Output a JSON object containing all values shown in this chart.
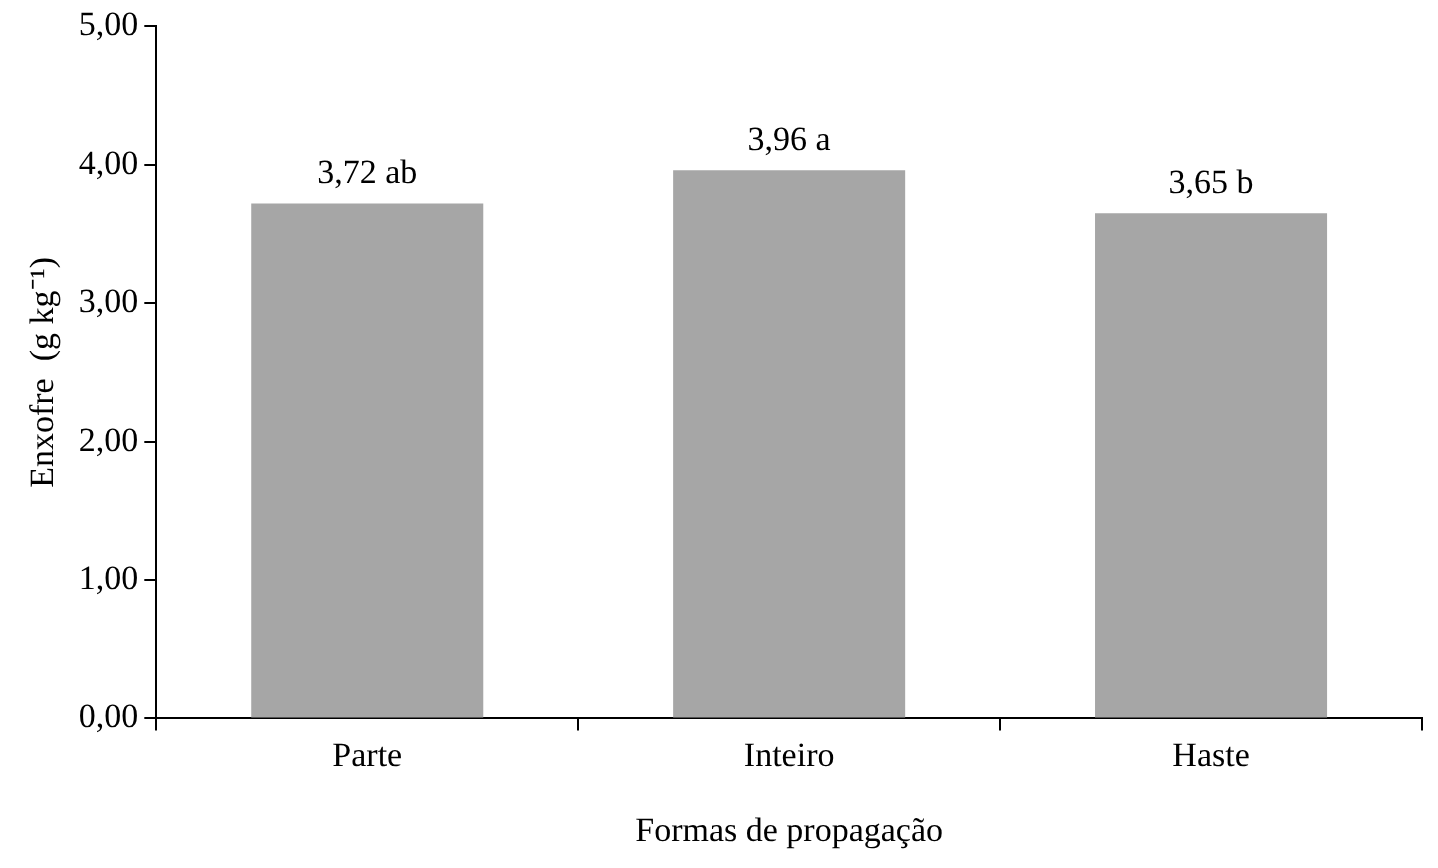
{
  "chart_data": {
    "type": "bar",
    "xlabel": "Formas de propagação",
    "ylabel": "Enxofre  (g kg⁻¹)",
    "categories": [
      "Parte",
      "Inteiro",
      "Haste"
    ],
    "values": [
      3.72,
      3.96,
      3.65
    ],
    "value_labels": [
      "3,72 ab",
      "3,96 a",
      "3,65 b"
    ],
    "color": "#a6a6a6",
    "ylim": [
      0,
      5
    ],
    "yticks": [
      {
        "value": 0,
        "label": "0,00"
      },
      {
        "value": 1,
        "label": "1,00"
      },
      {
        "value": 2,
        "label": "2,00"
      },
      {
        "value": 3,
        "label": "3,00"
      },
      {
        "value": 4,
        "label": "4,00"
      },
      {
        "value": 5,
        "label": "5,00"
      }
    ],
    "grid": false,
    "legend": false
  }
}
